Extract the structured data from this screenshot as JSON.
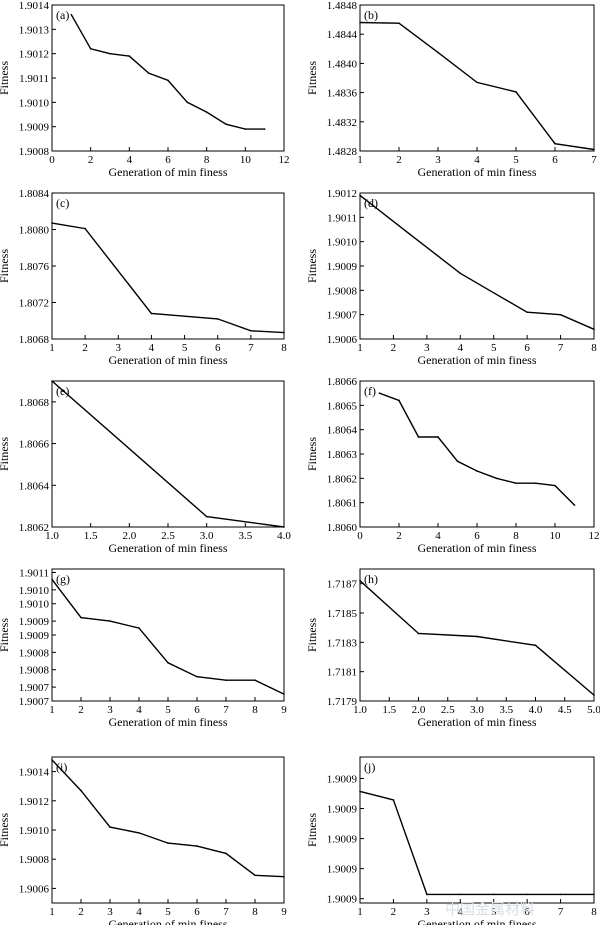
{
  "watermark": "中国金属材料",
  "chart_data": [
    {
      "panel": "(a)",
      "type": "line",
      "x": [
        1,
        2,
        3,
        4,
        5,
        6,
        7,
        8,
        9,
        10,
        11
      ],
      "y": [
        1.90136,
        1.90122,
        1.9012,
        1.90119,
        1.90112,
        1.90109,
        1.901,
        1.90096,
        1.90091,
        1.90089,
        1.90089
      ],
      "xlim": [
        0,
        12
      ],
      "ylim": [
        1.9008,
        1.9014
      ],
      "xticks": [
        "0",
        "2",
        "4",
        "6",
        "8",
        "10",
        "12"
      ],
      "yticks": [
        "1.9008",
        "1.9009",
        "1.9010",
        "1.9011",
        "1.9012",
        "1.9013",
        "1.9014"
      ],
      "xlabel": "Generation of min finess",
      "ylabel": "Fitness"
    },
    {
      "panel": "(b)",
      "type": "line",
      "x": [
        1,
        2,
        3,
        4,
        5,
        6,
        7
      ],
      "y": [
        1.48456,
        1.48455,
        1.48415,
        1.48374,
        1.48361,
        1.4829,
        1.48282
      ],
      "xlim": [
        1,
        7
      ],
      "ylim": [
        1.4828,
        1.4848
      ],
      "xticks": [
        "1",
        "2",
        "3",
        "4",
        "5",
        "6",
        "7"
      ],
      "yticks": [
        "1.4828",
        "1.4832",
        "1.4836",
        "1.4840",
        "1.4844",
        "1.4848"
      ],
      "xlabel": "Generation of min finess",
      "ylabel": "Fitness"
    },
    {
      "panel": "(c)",
      "type": "line",
      "x": [
        1,
        2,
        4,
        6,
        7,
        8
      ],
      "y": [
        1.80807,
        1.80801,
        1.80708,
        1.80702,
        1.80689,
        1.80687
      ],
      "xlim": [
        1,
        8
      ],
      "ylim": [
        1.8068,
        1.8084
      ],
      "xticks": [
        "1",
        "2",
        "3",
        "4",
        "5",
        "6",
        "7",
        "8"
      ],
      "yticks": [
        "1.8068",
        "1.8072",
        "1.8076",
        "1.8080",
        "1.8084"
      ],
      "xlabel": "Generation of min finess",
      "ylabel": "Fitness"
    },
    {
      "panel": "(d)",
      "type": "line",
      "x": [
        1,
        2.5,
        4,
        5,
        6,
        7,
        8
      ],
      "y": [
        1.90119,
        1.90103,
        1.90087,
        1.90079,
        1.90071,
        1.9007,
        1.90064
      ],
      "xlim": [
        1,
        8
      ],
      "ylim": [
        1.9006,
        1.9012
      ],
      "xticks": [
        "1",
        "2",
        "3",
        "4",
        "5",
        "6",
        "7",
        "8"
      ],
      "yticks": [
        "1.9006",
        "1.9007",
        "1.9008",
        "1.9009",
        "1.9010",
        "1.9011",
        "1.9012"
      ],
      "xlabel": "Generation of min finess",
      "ylabel": "Fitness"
    },
    {
      "panel": "(e)",
      "type": "line",
      "x": [
        1.0,
        3.0,
        4.0
      ],
      "y": [
        1.8069,
        1.80625,
        1.8062
      ],
      "xlim": [
        1.0,
        4.0
      ],
      "ylim": [
        1.8062,
        1.8069
      ],
      "xticks": [
        "1.0",
        "1.5",
        "2.0",
        "2.5",
        "3.0",
        "3.5",
        "4.0"
      ],
      "yticks": [
        "1.8062",
        "1.8064",
        "1.8066",
        "1.8068"
      ],
      "xlabel": "Generation of min finess",
      "ylabel": "Fitness"
    },
    {
      "panel": "(f)",
      "type": "line",
      "x": [
        1,
        2,
        3,
        4,
        5,
        6,
        7,
        8,
        9,
        10,
        11
      ],
      "y": [
        1.80655,
        1.80652,
        1.80637,
        1.80637,
        1.80627,
        1.80623,
        1.8062,
        1.80618,
        1.80618,
        1.80617,
        1.80609
      ],
      "xlim": [
        0,
        12
      ],
      "ylim": [
        1.806,
        1.8066
      ],
      "xticks": [
        "0",
        "2",
        "4",
        "6",
        "8",
        "10",
        "12"
      ],
      "yticks": [
        "1.8060",
        "1.8061",
        "1.8062",
        "1.8063",
        "1.8064",
        "1.8065",
        "1.8066"
      ],
      "xlabel": "Generation of min finess",
      "ylabel": "Fitness"
    },
    {
      "panel": "(g)",
      "type": "line",
      "x": [
        1,
        2,
        3,
        4,
        5,
        6,
        7,
        8,
        9
      ],
      "y": [
        1.90103,
        1.90092,
        1.90091,
        1.90089,
        1.90079,
        1.90075,
        1.90074,
        1.90074,
        1.9007
      ],
      "xlim": [
        1,
        9
      ],
      "ylim": [
        1.90068,
        1.90106
      ],
      "xticks": [
        "1",
        "2",
        "3",
        "4",
        "5",
        "6",
        "7",
        "8",
        "9"
      ],
      "yticks": [
        "1.9007",
        "1.9007",
        "1.9008",
        "1.9008",
        "1.9009",
        "1.9009",
        "1.9010",
        "1.9010",
        "1.9011"
      ],
      "xlabel": "Generation of min finess",
      "ylabel": "Fitness"
    },
    {
      "panel": "(h)",
      "type": "line",
      "x": [
        1.0,
        2.0,
        3.0,
        4.0,
        5.0
      ],
      "y": [
        1.71872,
        1.71836,
        1.71834,
        1.71828,
        1.71794
      ],
      "xlim": [
        1.0,
        5.0
      ],
      "ylim": [
        1.7179,
        1.7188
      ],
      "xticks": [
        "1.0",
        "1.5",
        "2.0",
        "2.5",
        "3.0",
        "3.5",
        "4.0",
        "4.5",
        "5.0"
      ],
      "yticks": [
        "1.7179",
        "1.7181",
        "1.7183",
        "1.7185",
        "1.7187"
      ],
      "xlabel": "Generation of min finess",
      "ylabel": "Fitness"
    },
    {
      "panel": "(i)",
      "type": "line",
      "x": [
        1,
        2,
        3,
        4,
        5,
        6,
        7,
        8,
        9
      ],
      "y": [
        1.90148,
        1.90127,
        1.90102,
        1.90098,
        1.90091,
        1.90089,
        1.90084,
        1.90069,
        1.90068
      ],
      "xlim": [
        1,
        9
      ],
      "ylim": [
        1.9005,
        1.9015
      ],
      "xticks": [
        "1",
        "2",
        "3",
        "4",
        "5",
        "6",
        "7",
        "8",
        "9"
      ],
      "yticks": [
        "1.9006",
        "1.9008",
        "1.9010",
        "1.9012",
        "1.9014"
      ],
      "xlabel": "Generation of min finess",
      "ylabel": "Fitness"
    },
    {
      "panel": "(j)",
      "type": "line",
      "x": [
        1,
        2,
        3,
        4,
        5,
        6,
        7,
        8
      ],
      "y": [
        1.90086,
        1.90085,
        1.90074,
        1.90074,
        1.90074,
        1.90074,
        1.90074,
        1.90074
      ],
      "xlim": [
        1,
        8
      ],
      "ylim": [
        1.90073,
        1.9009
      ],
      "xticks": [
        "1",
        "2",
        "3",
        "4",
        "5",
        "6",
        "7",
        "8"
      ],
      "yticks": [
        "1.9009",
        "1.9009",
        "1.9009",
        "1.9009",
        "1.9009"
      ],
      "xlabel": "Generation of min finess",
      "ylabel": "Fitness"
    }
  ]
}
